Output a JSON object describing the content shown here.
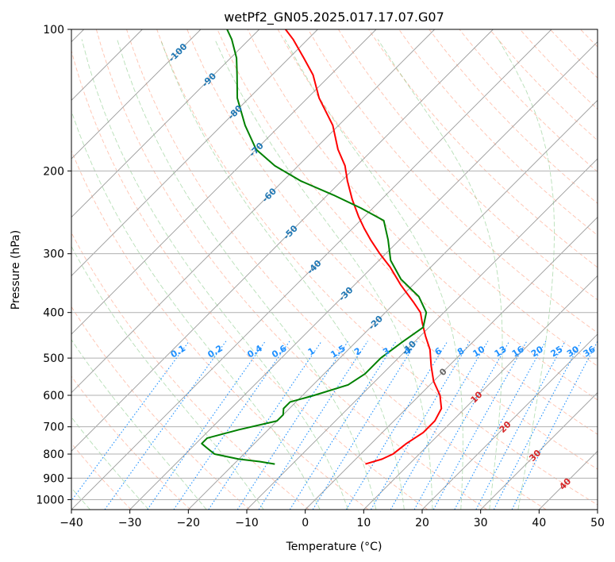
{
  "chart_data": {
    "type": "line",
    "subtype": "skew-t log-p diagram",
    "title": "wetPf2_GN05.2025.017.17.07.G07",
    "xlabel": "Temperature (°C)",
    "ylabel": "Pressure (hPa)",
    "xlim": [
      -40,
      50
    ],
    "ylim": [
      1050,
      100
    ],
    "y_scale": "log",
    "grid": true,
    "x_ticks": [
      "−40",
      "−30",
      "−20",
      "−10",
      "0",
      "10",
      "20",
      "30",
      "40",
      "50"
    ],
    "y_ticks": [
      "100",
      "200",
      "300",
      "400",
      "500",
      "600",
      "700",
      "800",
      "900",
      "1000"
    ],
    "isotherm_labels": [
      "-100",
      "-90",
      "-80",
      "-70",
      "-60",
      "-50",
      "-40",
      "-30",
      "-20",
      "-10",
      "0",
      "10",
      "20",
      "30",
      "40"
    ],
    "isotherm_values": [
      -100,
      -90,
      -80,
      -70,
      -60,
      -50,
      -40,
      -30,
      -20,
      -10,
      0,
      10,
      20,
      30,
      40
    ],
    "mixing_ratio_labels": [
      "0.1",
      "0.2",
      "0.4",
      "0.6",
      "1",
      "1.5",
      "2",
      "3",
      "4",
      "6",
      "8",
      "10",
      "13",
      "16",
      "20",
      "25",
      "30",
      "36"
    ],
    "mixing_ratio_values": [
      0.1,
      0.2,
      0.4,
      0.6,
      1,
      1.5,
      2,
      3,
      4,
      6,
      8,
      10,
      13,
      16,
      20,
      25,
      30,
      36
    ],
    "series": [
      {
        "role": "temperature",
        "color": "#ff0000",
        "points": [
          {
            "p": 840,
            "t": 2.5
          },
          {
            "p": 820,
            "t": 4.5
          },
          {
            "p": 800,
            "t": 5.5
          },
          {
            "p": 760,
            "t": 6
          },
          {
            "p": 720,
            "t": 7
          },
          {
            "p": 680,
            "t": 7
          },
          {
            "p": 640,
            "t": 6
          },
          {
            "p": 600,
            "t": 3.5
          },
          {
            "p": 560,
            "t": 0
          },
          {
            "p": 520,
            "t": -3
          },
          {
            "p": 480,
            "t": -6
          },
          {
            "p": 450,
            "t": -9
          },
          {
            "p": 420,
            "t": -12
          },
          {
            "p": 400,
            "t": -14
          },
          {
            "p": 380,
            "t": -17
          },
          {
            "p": 350,
            "t": -22
          },
          {
            "p": 320,
            "t": -27
          },
          {
            "p": 300,
            "t": -31
          },
          {
            "p": 280,
            "t": -35
          },
          {
            "p": 265,
            "t": -38
          },
          {
            "p": 250,
            "t": -41
          },
          {
            "p": 230,
            "t": -45
          },
          {
            "p": 210,
            "t": -49
          },
          {
            "p": 195,
            "t": -52
          },
          {
            "p": 180,
            "t": -56
          },
          {
            "p": 160,
            "t": -61
          },
          {
            "p": 140,
            "t": -68
          },
          {
            "p": 125,
            "t": -73
          },
          {
            "p": 115,
            "t": -77.5
          },
          {
            "p": 105,
            "t": -82.5
          },
          {
            "p": 100,
            "t": -85.5
          }
        ]
      },
      {
        "role": "dewpoint",
        "color": "#008000",
        "points": [
          {
            "p": 840,
            "t": -13
          },
          {
            "p": 830,
            "t": -16
          },
          {
            "p": 820,
            "t": -20
          },
          {
            "p": 800,
            "t": -25
          },
          {
            "p": 780,
            "t": -27
          },
          {
            "p": 760,
            "t": -29
          },
          {
            "p": 740,
            "t": -29
          },
          {
            "p": 710,
            "t": -25
          },
          {
            "p": 680,
            "t": -20
          },
          {
            "p": 660,
            "t": -20
          },
          {
            "p": 640,
            "t": -21
          },
          {
            "p": 620,
            "t": -21
          },
          {
            "p": 600,
            "t": -18
          },
          {
            "p": 570,
            "t": -14
          },
          {
            "p": 540,
            "t": -13
          },
          {
            "p": 500,
            "t": -13
          },
          {
            "p": 460,
            "t": -12
          },
          {
            "p": 430,
            "t": -11
          },
          {
            "p": 400,
            "t": -13
          },
          {
            "p": 370,
            "t": -17
          },
          {
            "p": 340,
            "t": -23
          },
          {
            "p": 310,
            "t": -28
          },
          {
            "p": 280,
            "t": -32
          },
          {
            "p": 255,
            "t": -36
          },
          {
            "p": 240,
            "t": -42
          },
          {
            "p": 225,
            "t": -49
          },
          {
            "p": 210,
            "t": -57
          },
          {
            "p": 195,
            "t": -64
          },
          {
            "p": 180,
            "t": -70
          },
          {
            "p": 160,
            "t": -76
          },
          {
            "p": 140,
            "t": -82
          },
          {
            "p": 125,
            "t": -86
          },
          {
            "p": 115,
            "t": -89
          },
          {
            "p": 105,
            "t": -93
          },
          {
            "p": 100,
            "t": -95.5
          }
        ]
      }
    ]
  }
}
